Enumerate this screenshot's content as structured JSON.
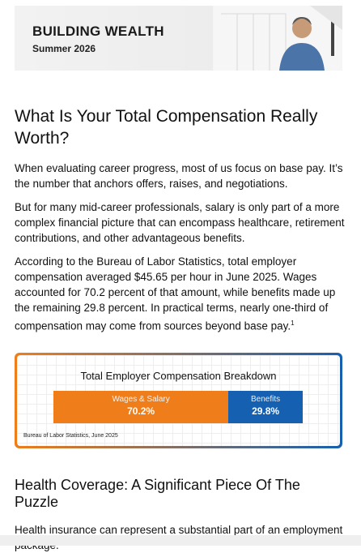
{
  "header": {
    "title": "BUILDING WEALTH",
    "subtitle": "Summer 2026"
  },
  "article": {
    "title": "What Is Your Total Compensation Really Worth?",
    "paragraphs": [
      "When evaluating career progress, most of us focus on base pay. It’s the number that anchors offers, raises, and negotiations.",
      "But for many mid-career professionals, salary is only part of a more complex financial picture that can encompass healthcare, retirement contributions, and other advantageous benefits.",
      "According to the Bureau of Labor Statistics, total employer compensation averaged $45.65 per hour in June 2025. Wages accounted for 70.2 percent of that amount, while benefits made up the remaining 29.8 percent. In practical terms, nearly one-third of compensation may come from sources beyond base pay."
    ],
    "footnote_ref": "1"
  },
  "chart_data": {
    "type": "bar",
    "title": "Total Employer Compensation Breakdown",
    "series": [
      {
        "name": "Wages & Salary",
        "color": "#ef7d1a",
        "values": [
          70.2
        ],
        "value_labels": [
          "70.2%"
        ]
      },
      {
        "name": "Benefits",
        "color": "#1560b0",
        "values": [
          29.8
        ],
        "value_labels": [
          "29.8%"
        ]
      }
    ],
    "xlim": [
      0,
      100
    ],
    "source": "Bureau of Labor Statistics, June 2025"
  },
  "section": {
    "title": "Health Coverage: A Significant Piece Of The Puzzle",
    "paragraphs": [
      "Health insurance can represent a substantial part of an employment package."
    ]
  }
}
